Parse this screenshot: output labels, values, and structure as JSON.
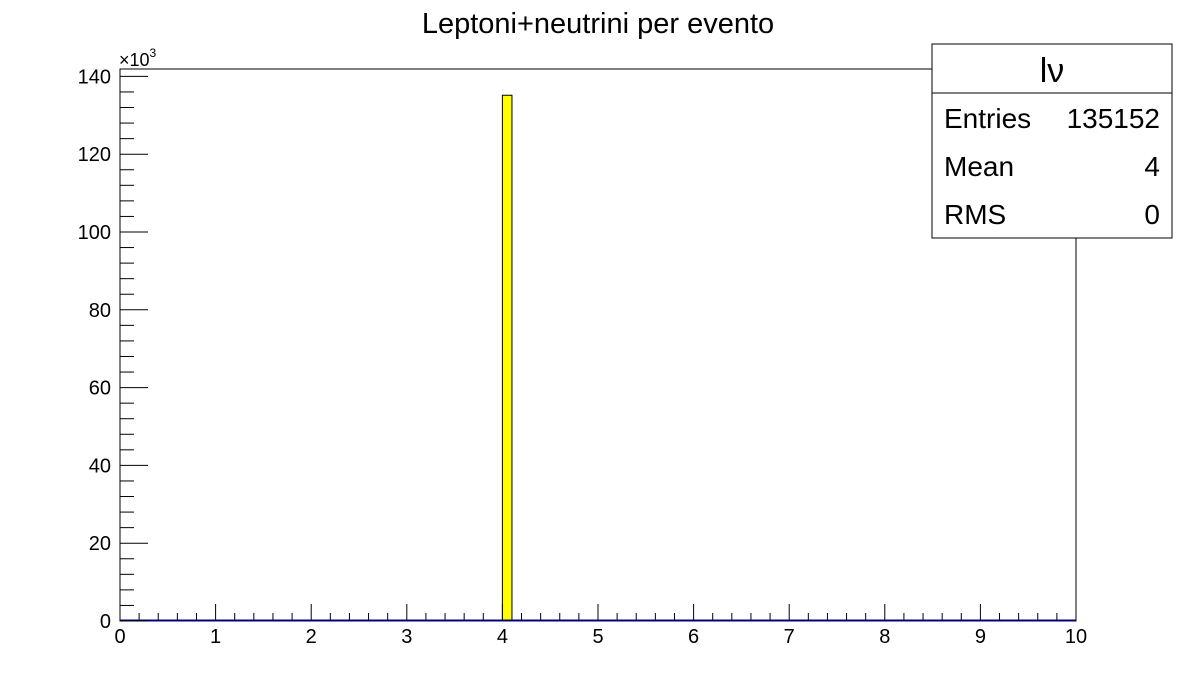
{
  "chart_data": {
    "type": "bar",
    "title": "Leptoni+neutrini per evento",
    "xlabel": "",
    "ylabel": "",
    "xlim": [
      0,
      10
    ],
    "ylim": [
      0,
      141.9
    ],
    "y_multiplier_label": "×10",
    "y_multiplier_exp": "3",
    "x_ticks": [
      "0",
      "1",
      "2",
      "3",
      "4",
      "5",
      "6",
      "7",
      "8",
      "9",
      "10"
    ],
    "y_ticks": [
      "0",
      "20",
      "40",
      "60",
      "80",
      "100",
      "120",
      "140"
    ],
    "bin_width": 0.1,
    "bins": [
      {
        "x_low": 4.0,
        "x_high": 4.1,
        "value": 135.152
      }
    ],
    "fill_color": "#ffff00",
    "line_color": "#000080",
    "grid": false,
    "stats_box": {
      "title": "lν",
      "position": "top-right",
      "rows": [
        {
          "label": "Entries",
          "value": "135152"
        },
        {
          "label": "Mean",
          "value": "4"
        },
        {
          "label": "RMS",
          "value": "0"
        }
      ]
    }
  }
}
